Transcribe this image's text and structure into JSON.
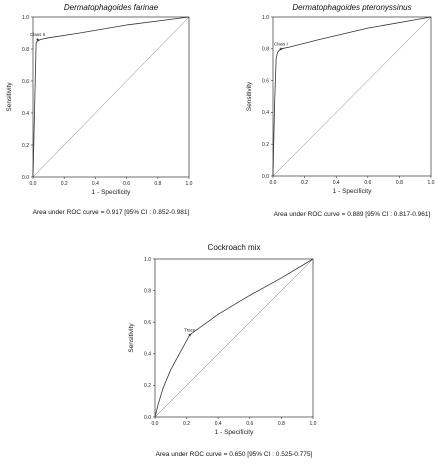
{
  "chart_data": [
    {
      "type": "line",
      "title": "Dermatophagoides farinae",
      "title_style": "italic",
      "xlabel": "1 - Specificity",
      "ylabel": "Sensitivity",
      "xlim": [
        0,
        1
      ],
      "ylim": [
        0,
        1
      ],
      "xticks": [
        "0.0",
        "0.2",
        "0.4",
        "0.6",
        "0.8",
        "1.0"
      ],
      "yticks": [
        "0.0",
        "0.2",
        "0.4",
        "0.6",
        "0.8",
        "1.0"
      ],
      "grid": false,
      "series": [
        {
          "x": [
            0,
            0.02,
            0.03,
            0.05,
            0.1,
            0.3,
            0.6,
            1.0
          ],
          "y": [
            0,
            0.84,
            0.85,
            0.86,
            0.87,
            0.9,
            0.95,
            1.0
          ]
        }
      ],
      "reference_line": {
        "x": [
          0,
          1
        ],
        "y": [
          0,
          1
        ]
      },
      "annotation": {
        "text": "Class II",
        "x": 0.03,
        "y": 0.86
      },
      "caption": "Area under ROC curve = 0.917 [95% CI : 0.852-0.981]"
    },
    {
      "type": "line",
      "title": "Dermatophagoides pteronyssinus",
      "title_style": "italic",
      "xlabel": "1 - Specificity",
      "ylabel": "Sensitivity",
      "xlim": [
        0,
        1
      ],
      "ylim": [
        0,
        1
      ],
      "xticks": [
        "0.0",
        "0.2",
        "0.4",
        "0.6",
        "0.8",
        "1.0"
      ],
      "yticks": [
        "0.0",
        "0.2",
        "0.4",
        "0.6",
        "0.8",
        "1.0"
      ],
      "grid": false,
      "series": [
        {
          "x": [
            0,
            0.01,
            0.02,
            0.03,
            0.05,
            0.1,
            0.3,
            0.6,
            1.0
          ],
          "y": [
            0,
            0.45,
            0.74,
            0.78,
            0.8,
            0.81,
            0.86,
            0.93,
            1.0
          ]
        }
      ],
      "reference_line": {
        "x": [
          0,
          1
        ],
        "y": [
          0,
          1
        ]
      },
      "annotation": {
        "text": "Class I",
        "x": 0.05,
        "y": 0.8
      },
      "caption": "Area under ROC curve = 0.889 [95% CI : 0.817-0.961]"
    },
    {
      "type": "line",
      "title": "Cockroach mix",
      "title_style": "normal",
      "xlabel": "1 - Specificity",
      "ylabel": "Sensitivity",
      "xlim": [
        0,
        1
      ],
      "ylim": [
        0,
        1
      ],
      "xticks": [
        "0.0",
        "0.2",
        "0.4",
        "0.6",
        "0.8",
        "1.0"
      ],
      "yticks": [
        "0.0",
        "0.2",
        "0.4",
        "0.6",
        "0.8",
        "1.0"
      ],
      "grid": false,
      "series": [
        {
          "x": [
            0,
            0.02,
            0.05,
            0.1,
            0.22,
            0.4,
            0.6,
            0.8,
            1.0
          ],
          "y": [
            0,
            0.08,
            0.18,
            0.3,
            0.52,
            0.65,
            0.77,
            0.88,
            1.0
          ]
        }
      ],
      "reference_line": {
        "x": [
          0,
          1
        ],
        "y": [
          0,
          1
        ]
      },
      "annotation": {
        "text": "Trace",
        "x": 0.22,
        "y": 0.52
      },
      "caption": "Area under ROC curve = 0.650 [95% CI : 0.525-0.775]"
    }
  ]
}
